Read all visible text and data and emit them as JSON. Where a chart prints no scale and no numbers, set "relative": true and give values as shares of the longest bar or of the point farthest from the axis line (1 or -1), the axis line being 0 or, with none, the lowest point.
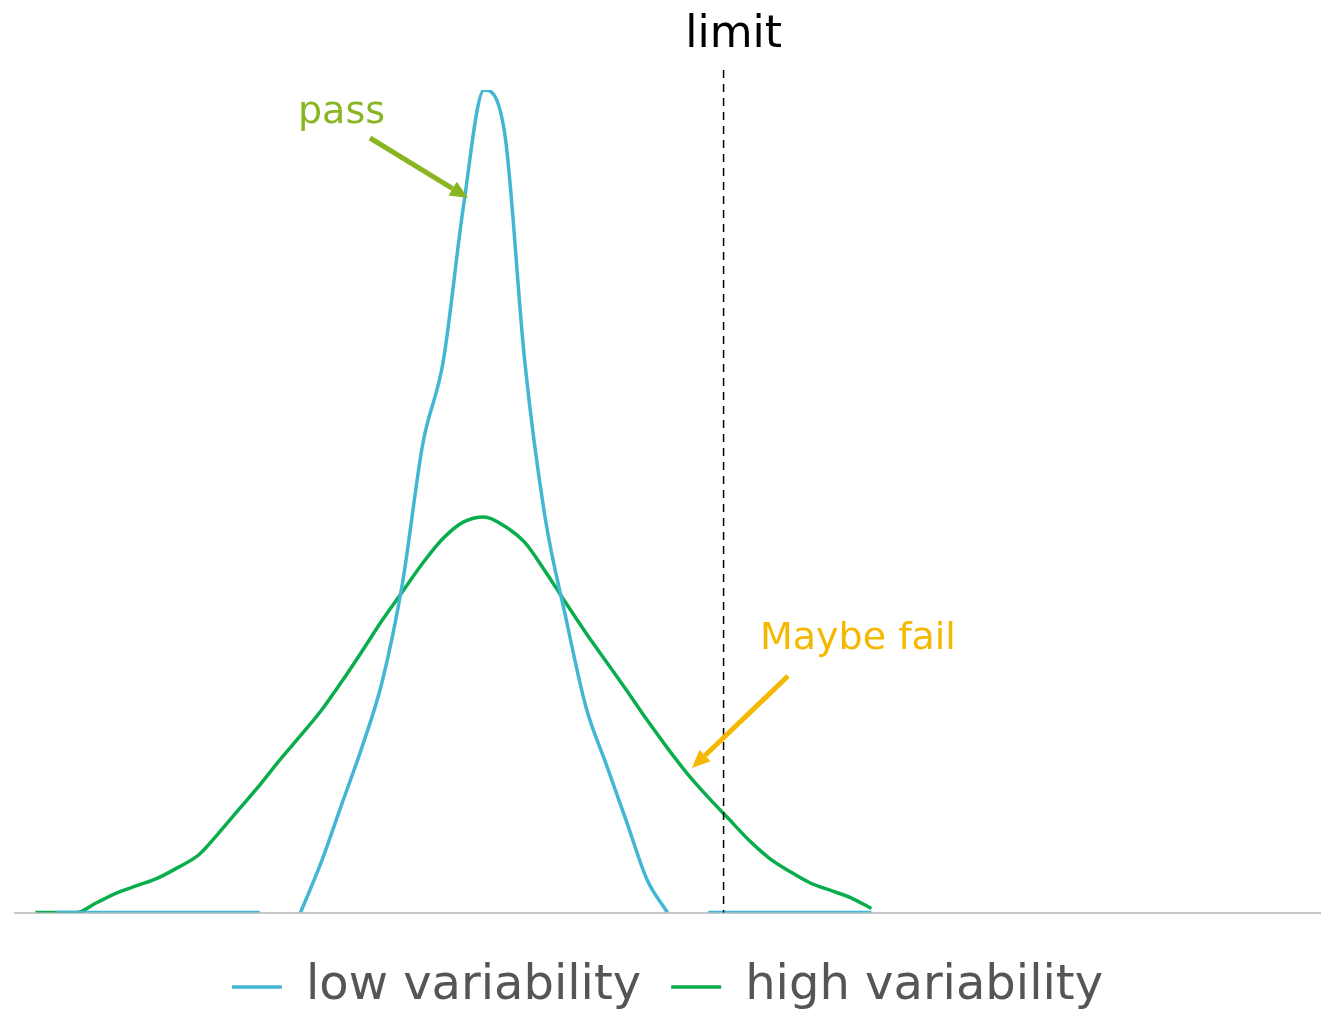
{
  "chart_data": {
    "type": "line",
    "relative": true,
    "grid": false,
    "legend": "bottom",
    "marker": "none",
    "line_style": "solid",
    "categories": [
      null,
      null,
      null,
      null,
      null,
      null,
      null,
      null,
      null,
      null,
      null,
      null,
      null,
      null,
      null,
      null,
      null,
      null,
      null,
      null,
      null,
      null,
      null,
      null,
      null,
      null,
      null,
      null,
      null,
      null,
      null,
      null,
      null,
      null,
      null,
      null,
      null,
      null,
      null,
      null,
      null,
      null,
      null,
      null,
      null,
      null,
      null,
      null,
      null,
      null,
      null,
      null,
      null,
      null,
      null,
      null,
      null,
      null,
      null,
      null,
      null,
      null,
      null,
      null,
      null
    ],
    "series": [
      {
        "name": "low variability",
        "color": "#42b6d2",
        "values": [
          null,
          null,
          0,
          0,
          0,
          0,
          0,
          0,
          0,
          0,
          0,
          0,
          0,
          null,
          0,
          0.06,
          0.13,
          0.2,
          0.28,
          0.4,
          0.57,
          0.67,
          0.86,
          1,
          0.95,
          0.67,
          0.48,
          0.36,
          0.25,
          0.18,
          0.11,
          0.04,
          0,
          null,
          0,
          0,
          0,
          0,
          0,
          0,
          0,
          0,
          0,
          null,
          null,
          null,
          null,
          null,
          null,
          null,
          null,
          null,
          null,
          null,
          null,
          null,
          null,
          null,
          null,
          null,
          null,
          null,
          null,
          null,
          null
        ]
      },
      {
        "name": "high variability",
        "color": "#0aad4c",
        "values": [
          null,
          0,
          0,
          0,
          0.012,
          0.024,
          0.033,
          0.042,
          0.055,
          0.07,
          0.097,
          0.126,
          0.155,
          0.186,
          0.215,
          0.245,
          0.28,
          0.317,
          0.355,
          0.39,
          0.425,
          0.455,
          0.475,
          0.481,
          0.47,
          0.45,
          0.415,
          0.377,
          0.34,
          0.305,
          0.27,
          0.234,
          0.2,
          0.168,
          0.14,
          0.114,
          0.088,
          0.066,
          0.05,
          0.036,
          0.027,
          0.018,
          0.005,
          null,
          null,
          null,
          null,
          null,
          null,
          null,
          null,
          null,
          null,
          null,
          null,
          null,
          null,
          null,
          null,
          null,
          null,
          null,
          null,
          null,
          null
        ]
      }
    ],
    "annotations": [
      "limit",
      "pass",
      "Maybe fail"
    ]
  }
}
